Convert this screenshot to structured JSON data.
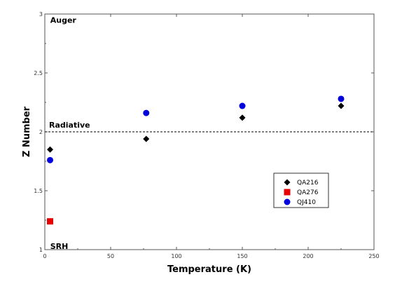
{
  "chart_data": {
    "type": "scatter",
    "xlabel": "Temperature (K)",
    "ylabel": "Z Number",
    "xlim": [
      0,
      250
    ],
    "ylim": [
      1,
      3
    ],
    "xticks": [
      0,
      50,
      100,
      150,
      200,
      250
    ],
    "yticks": [
      1,
      1.5,
      2,
      2.5,
      3
    ],
    "xtick_labels": [
      "0",
      "50",
      "100",
      "150",
      "200",
      "250"
    ],
    "ytick_labels": [
      "1",
      "1.5",
      "2",
      "2.5",
      "3"
    ],
    "grid": false,
    "legend_position": "lower-right",
    "reference_line": {
      "y": 2,
      "style": "dashed",
      "label": "Radiative"
    },
    "annotations": [
      {
        "text": "Auger",
        "x": 2,
        "y": 2.95
      },
      {
        "text": "SRH",
        "x": 2,
        "y": 1.03
      }
    ],
    "series": [
      {
        "name": "QA216",
        "marker": "diamond",
        "color": "#000000",
        "points": [
          [
            4,
            1.85
          ],
          [
            77,
            1.94
          ],
          [
            150,
            2.12
          ],
          [
            225,
            2.22
          ]
        ]
      },
      {
        "name": "QA276",
        "marker": "square",
        "color": "#e60000",
        "points": [
          [
            4,
            1.24
          ]
        ]
      },
      {
        "name": "QJ410",
        "marker": "circle",
        "color": "#0000dd",
        "points": [
          [
            4,
            1.76
          ],
          [
            77,
            2.16
          ],
          [
            150,
            2.22
          ],
          [
            225,
            2.28
          ]
        ]
      }
    ]
  }
}
